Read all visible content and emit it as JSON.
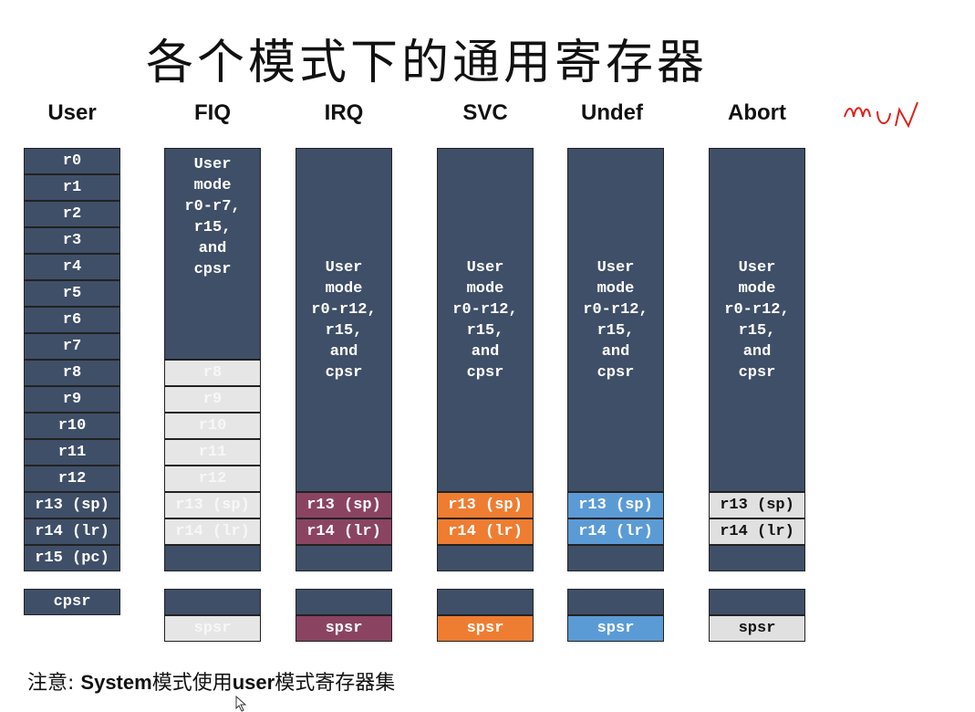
{
  "title": "各个模式下的通用寄存器",
  "columns": [
    {
      "header": "User"
    },
    {
      "header": "FIQ",
      "shared_text": "User\nmode\nr0-r7,\nr15,\nand\ncpsr"
    },
    {
      "header": "IRQ",
      "shared_text": "User\nmode\nr0-r12,\nr15,\nand\ncpsr"
    },
    {
      "header": "SVC",
      "shared_text": "User\nmode\nr0-r12,\nr15,\nand\ncpsr"
    },
    {
      "header": "Undef",
      "shared_text": "User\nmode\nr0-r12,\nr15,\nand\ncpsr"
    },
    {
      "header": "Abort",
      "shared_text": "User\nmode\nr0-r12,\nr15,\nand\ncpsr"
    }
  ],
  "user_registers": [
    "r0",
    "r1",
    "r2",
    "r3",
    "r4",
    "r5",
    "r6",
    "r7",
    "r8",
    "r9",
    "r10",
    "r11",
    "r12",
    "r13 (sp)",
    "r14 (lr)",
    "r15 (pc)"
  ],
  "user_cpsr": "cpsr",
  "fiq_banked": [
    "r8",
    "r9",
    "r10",
    "r11",
    "r12",
    "r13 (sp)",
    "r14 (lr)"
  ],
  "fiq_spsr": "spsr",
  "irq": {
    "r13": "r13 (sp)",
    "r14": "r14 (lr)",
    "spsr": "spsr"
  },
  "svc": {
    "r13": "r13 (sp)",
    "r14": "r14 (lr)",
    "spsr": "spsr"
  },
  "undef": {
    "r13": "r13 (sp)",
    "r14": "r14 (lr)",
    "spsr": "spsr"
  },
  "abort": {
    "r13": "r13 (sp)",
    "r14": "r14 (lr)",
    "spsr": "spsr"
  },
  "note": {
    "prefix": "注意: ",
    "bold": "System",
    "mid": "模式使用",
    "bold2": "user",
    "suffix": "模式寄存器集"
  },
  "colors": {
    "cell": "#3f4f68",
    "irq": "#8a4462",
    "svc": "#ee7d31",
    "undef": "#5b9bd5",
    "abort": "#e0e0e0",
    "fiq_ghost": "#e6e6e6",
    "scribble": "#e0201a"
  }
}
